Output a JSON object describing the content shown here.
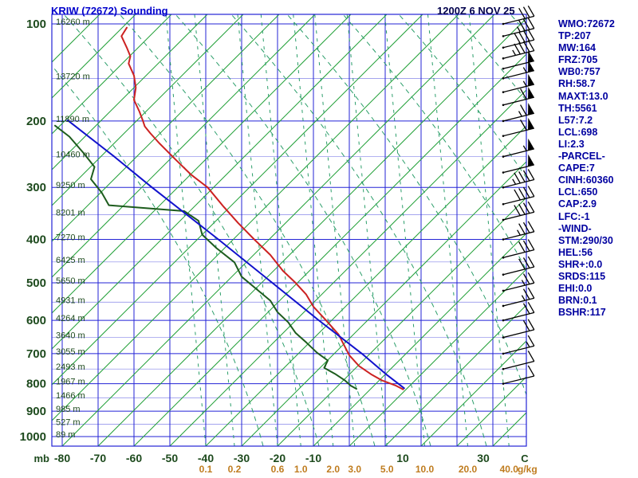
{
  "header": {
    "title": "KRIW (72672) Sounding",
    "datetime": "1200Z 6 NOV 25"
  },
  "stats_panel": {
    "lines": [
      "WMO:72672",
      "TP:207",
      "MW:164",
      "FRZ:705",
      "WB0:757",
      "RH:58.7",
      "MAXT:13.0",
      "TH:5561",
      "L57:7.2",
      "LCL:698",
      "LI:2.3",
      "-PARCEL-",
      "CAPE:7",
      "CINH:60360",
      "LCL:650",
      "CAP:2.9",
      "LFC:-1",
      "-WIND-",
      "STM:290/30",
      "HEL:56",
      "SHR+:0.0",
      "SRDS:115",
      "EHI:0.0",
      "BRN:0.1",
      "BSHR:117"
    ]
  },
  "chart_data": {
    "type": "line",
    "title": "KRIW (72672) Sounding",
    "subtitle": "Stuve-style pressure/temperature sounding diagram",
    "x_axis": {
      "label": "C",
      "ticks": [
        -80,
        -70,
        -60,
        -50,
        -40,
        -30,
        -20,
        -10,
        10,
        30
      ],
      "range": [
        -83,
        49
      ]
    },
    "y_axis": {
      "label": "mb",
      "ticks": [
        100,
        200,
        300,
        400,
        500,
        600,
        700,
        800,
        900,
        1000
      ],
      "scale": "pressure_p^0.2857",
      "range": [
        100,
        1000
      ]
    },
    "height_labels": {
      "pressures_mb": [
        100,
        150,
        200,
        250,
        300,
        350,
        400,
        450,
        500,
        550,
        600,
        650,
        700,
        750,
        800,
        850,
        900,
        950,
        1000
      ],
      "labels": [
        "16260 m",
        "13720 m",
        "11890 m",
        "10460 m",
        "9250 m",
        "8201 m",
        "7270 m",
        "6425 m",
        "5650 m",
        "4931 m",
        "4264 m",
        "3640 m",
        "3055 m",
        "2493 m",
        "1967 m",
        "1466 m",
        "985 m",
        "527 m",
        "89 m"
      ]
    },
    "mixing_ratio_axis": {
      "values": [
        "0.1",
        "0.2",
        "0.6",
        "1.0",
        "2.0",
        "3.0",
        "5.0",
        "10.0",
        "20.0",
        "40.0"
      ],
      "unit": "g/kg"
    },
    "series": [
      {
        "name": "temperature",
        "color": "#cc2222",
        "points_p_t": [
          [
            103,
            -62
          ],
          [
            110,
            -63.5
          ],
          [
            120,
            -62
          ],
          [
            128,
            -61
          ],
          [
            135,
            -61.5
          ],
          [
            147,
            -60
          ],
          [
            160,
            -59.5
          ],
          [
            174,
            -60
          ],
          [
            188,
            -58.5
          ],
          [
            200,
            -57.5
          ],
          [
            207,
            -57
          ],
          [
            216,
            -55.5
          ],
          [
            230,
            -53
          ],
          [
            254,
            -48.5
          ],
          [
            279,
            -44
          ],
          [
            300,
            -39.5
          ],
          [
            335,
            -35
          ],
          [
            366,
            -31
          ],
          [
            400,
            -26.5
          ],
          [
            434,
            -22
          ],
          [
            471,
            -18.5
          ],
          [
            500,
            -15
          ],
          [
            530,
            -12
          ],
          [
            562,
            -10
          ],
          [
            600,
            -6.5
          ],
          [
            641,
            -3
          ],
          [
            705,
            0
          ],
          [
            740,
            2.7
          ],
          [
            767,
            6
          ],
          [
            788,
            9
          ],
          [
            807,
            13
          ],
          [
            820,
            15
          ]
        ]
      },
      {
        "name": "dewpoint",
        "color": "#1d5c1d",
        "points_p_t": [
          [
            206,
            -82
          ],
          [
            221,
            -78
          ],
          [
            245,
            -74
          ],
          [
            266,
            -71
          ],
          [
            286,
            -72
          ],
          [
            309,
            -69
          ],
          [
            332,
            -67
          ],
          [
            343,
            -46
          ],
          [
            362,
            -42
          ],
          [
            390,
            -41
          ],
          [
            419,
            -37
          ],
          [
            451,
            -32
          ],
          [
            485,
            -30
          ],
          [
            515,
            -26
          ],
          [
            546,
            -22
          ],
          [
            577,
            -20
          ],
          [
            606,
            -17
          ],
          [
            636,
            -15
          ],
          [
            665,
            -12
          ],
          [
            697,
            -9
          ],
          [
            722,
            -6
          ],
          [
            746,
            -7
          ],
          [
            766,
            -4
          ],
          [
            788,
            -1.3
          ],
          [
            807,
            0.4
          ],
          [
            818,
            2
          ]
        ]
      },
      {
        "name": "parcel",
        "color": "#1111cc",
        "points_p_t": [
          [
            199,
            -78.5
          ],
          [
            250,
            -65.5
          ],
          [
            300,
            -55
          ],
          [
            400,
            -36.5
          ],
          [
            500,
            -21.5
          ],
          [
            600,
            -8.5
          ],
          [
            700,
            3.5
          ],
          [
            770,
            10.5
          ],
          [
            816,
            15.3
          ]
        ]
      }
    ],
    "wind_barbs": {
      "direction_deg": 290,
      "levels_p_kt": [
        [
          100,
          30
        ],
        [
          110,
          35
        ],
        [
          120,
          40
        ],
        [
          130,
          45
        ],
        [
          140,
          50
        ],
        [
          150,
          55
        ],
        [
          165,
          55
        ],
        [
          180,
          60
        ],
        [
          200,
          65
        ],
        [
          220,
          60
        ],
        [
          250,
          55
        ],
        [
          275,
          50
        ],
        [
          300,
          45
        ],
        [
          330,
          40
        ],
        [
          360,
          40
        ],
        [
          400,
          35
        ],
        [
          440,
          30
        ],
        [
          480,
          30
        ],
        [
          520,
          25
        ],
        [
          560,
          25
        ],
        [
          600,
          20
        ],
        [
          650,
          20
        ],
        [
          700,
          15
        ],
        [
          750,
          10
        ],
        [
          800,
          10
        ]
      ]
    }
  },
  "colors": {
    "grid_blue": "#2323d6",
    "isopleth_green": "#22a038",
    "dashed_teal": "#2b9e6a",
    "temperature_red": "#cc2222",
    "dewpoint_green": "#1d5c1d",
    "parcel_blue": "#1111cc",
    "axis_text": "#1d4a1d",
    "mixing_text": "#bf7c1f",
    "title": "#0000cc",
    "datetime": "#00004d",
    "stats": "#0000a0",
    "barbs": "#000000"
  }
}
